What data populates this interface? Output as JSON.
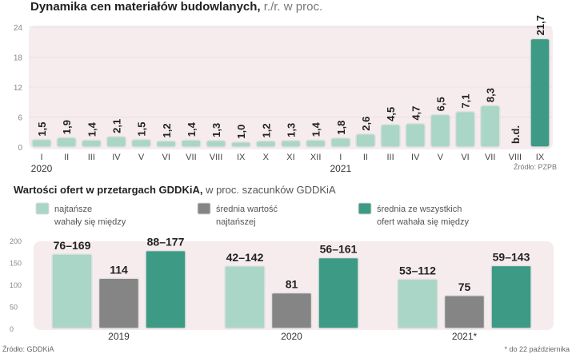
{
  "colors": {
    "light": "#a9d6c7",
    "gray": "#858585",
    "teal": "#3d9a84",
    "panel": "#f6ecee"
  },
  "chart_data": [
    {
      "type": "bar",
      "title": "Dynamika cen materiałów budowlanych,",
      "subtitle": "r./r. w proc.",
      "categories": [
        "I",
        "II",
        "III",
        "IV",
        "V",
        "VI",
        "VII",
        "VIII",
        "IX",
        "X",
        "XI",
        "XII",
        "I",
        "II",
        "III",
        "IV",
        "V",
        "VI",
        "VII",
        "VIII",
        "IX"
      ],
      "year_labels": [
        {
          "index": 0,
          "label": "2020"
        },
        {
          "index": 12,
          "label": "2021"
        }
      ],
      "values": [
        1.5,
        1.9,
        1.4,
        2.1,
        1.5,
        1.2,
        1.4,
        1.3,
        1.0,
        1.2,
        1.3,
        1.4,
        1.8,
        2.6,
        4.5,
        4.7,
        6.5,
        7.1,
        8.3,
        null,
        21.7
      ],
      "value_labels": [
        "1,5",
        "1,9",
        "1,4",
        "2,1",
        "1,5",
        "1,2",
        "1,4",
        "1,3",
        "1,0",
        "1,2",
        "1,3",
        "1,4",
        "1,8",
        "2,6",
        "4,5",
        "4,7",
        "6,5",
        "7,1",
        "8,3",
        "b.d.",
        "21,7"
      ],
      "highlight_index": 20,
      "ylim": [
        0,
        24
      ],
      "yticks": [
        0,
        6,
        12,
        18,
        24
      ],
      "grid": true,
      "source": "Źródło: PZPB"
    },
    {
      "type": "bar",
      "title": "Wartości ofert w przetargach GDDKiA,",
      "subtitle": "w proc. szacunków GDDKiA",
      "categories": [
        "2019",
        "2020",
        "2021*"
      ],
      "series": [
        {
          "name": "najtańsze wahały się między",
          "values": [
            169,
            142,
            112
          ],
          "labels": [
            "76–169",
            "42–142",
            "53–112"
          ]
        },
        {
          "name": "średnia wartość najtańszej",
          "values": [
            114,
            81,
            75
          ],
          "labels": [
            "114",
            "81",
            "75"
          ]
        },
        {
          "name": "średnia ze wszystkich ofert wahała się między",
          "values": [
            177,
            161,
            143
          ],
          "labels": [
            "88–177",
            "56–161",
            "59–143"
          ]
        }
      ],
      "legend_lines": [
        [
          "najtańsze",
          "wahały się między"
        ],
        [
          "średnia wartość",
          "najtańszej"
        ],
        [
          "średnia ze wszystkich",
          "ofert wahała się między"
        ]
      ],
      "legend": "top",
      "ylim": [
        0,
        200
      ],
      "yticks": [
        0,
        50,
        100,
        150,
        200
      ],
      "grid": true,
      "source": "Źródło: GDDKiA",
      "footnote": "* do 22 października"
    }
  ]
}
